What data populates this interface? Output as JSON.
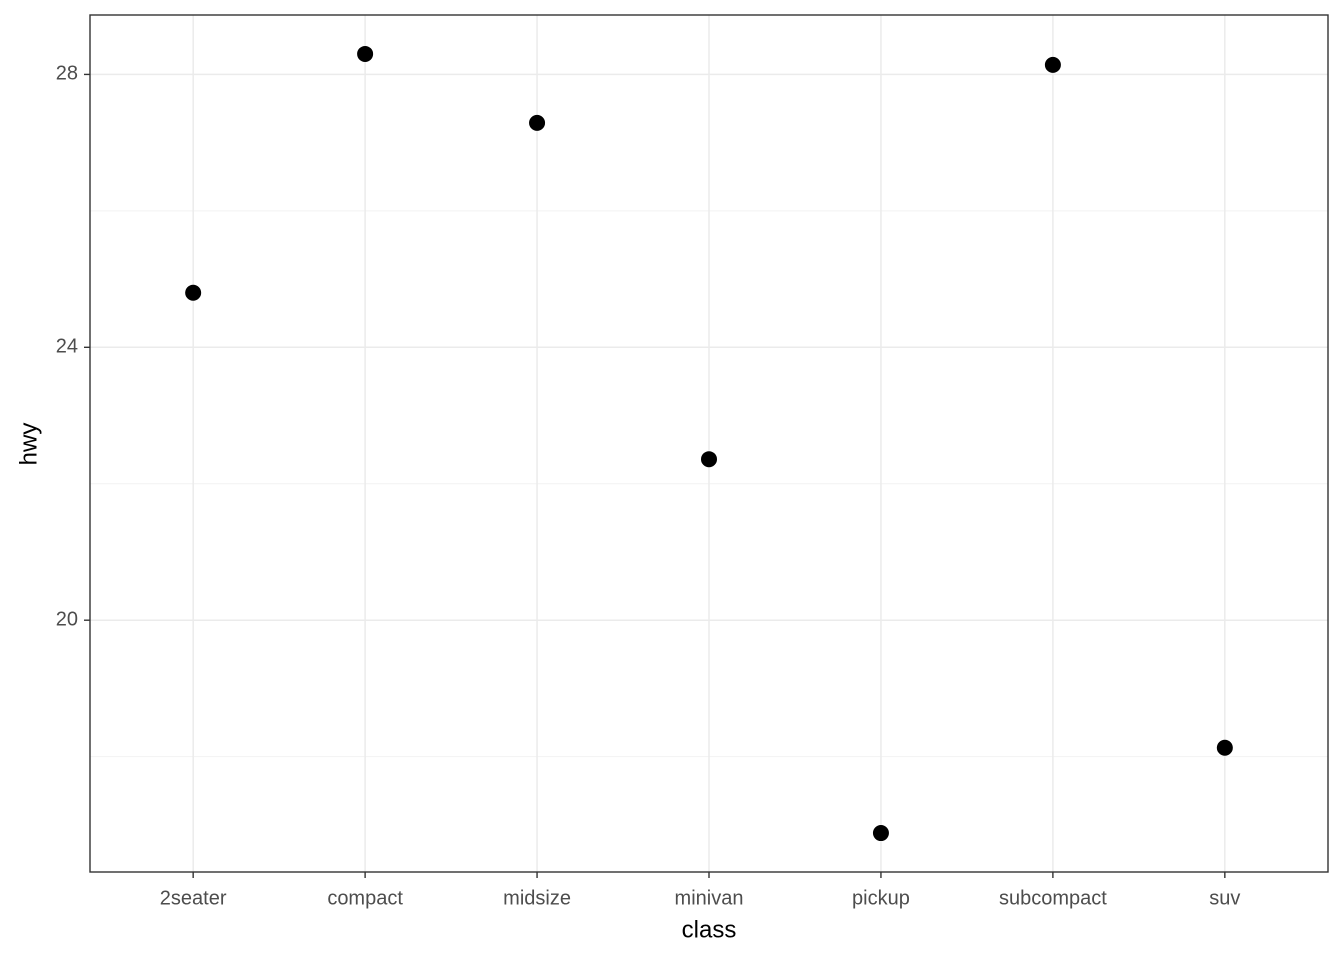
{
  "chart_data": {
    "type": "scatter",
    "x_label": "class",
    "y_label": "hwy",
    "categories": [
      "2seater",
      "compact",
      "midsize",
      "minivan",
      "pickup",
      "subcompact",
      "suv"
    ],
    "values": [
      24.8,
      28.3,
      27.29,
      22.36,
      16.88,
      28.14,
      18.13
    ],
    "color": "#000000",
    "ylim": [
      16.309,
      28.871
    ],
    "yticks": [
      20,
      24,
      28
    ],
    "minor_yticks": [
      18,
      22,
      26
    ],
    "grid": true
  }
}
